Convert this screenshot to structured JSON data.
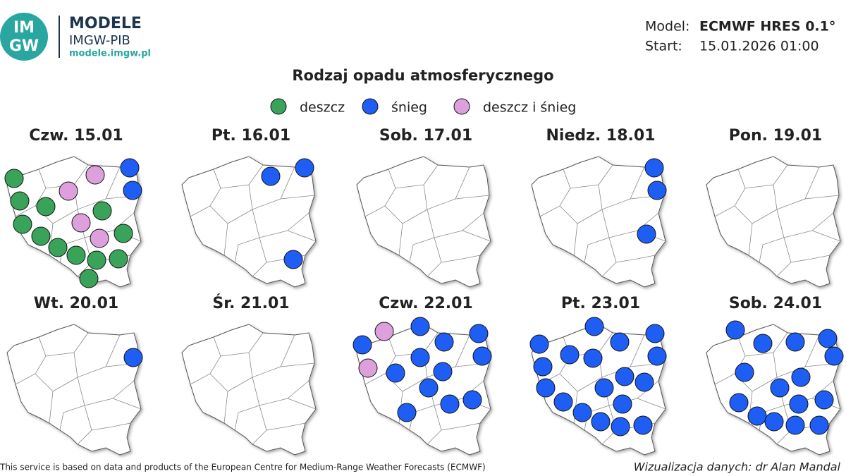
{
  "header": {
    "logo": [
      "IM",
      "GW"
    ],
    "brand": "MODELE",
    "org": "IMGW-PIB",
    "url": "modele.imgw.pl"
  },
  "model": {
    "label": "Model:",
    "value": "ECMWF HRES 0.1°"
  },
  "start": {
    "label": "Start:",
    "value": "15.01.2026 01:00"
  },
  "title": "Rodzaj opadu atmosferycznego",
  "legend": [
    {
      "label": "deszcz",
      "color": "#3aa35a"
    },
    {
      "label": "śnieg",
      "color": "#1f5ef5"
    },
    {
      "label": "deszcz i śnieg",
      "color": "#dda0dd"
    }
  ],
  "panels": [
    {
      "day": "Czw. 15.01"
    },
    {
      "day": "Pt. 16.01"
    },
    {
      "day": "Sob. 17.01"
    },
    {
      "day": "Niedz. 18.01"
    },
    {
      "day": "Pon. 19.01"
    },
    {
      "day": "Wt. 20.01"
    },
    {
      "day": "Śr. 21.01"
    },
    {
      "day": "Czw. 22.01"
    },
    {
      "day": "Pt. 23.01"
    },
    {
      "day": "Sob. 24.01"
    }
  ],
  "footer": {
    "credit": "This service is based on data and products of the European Centre for Medium-Range Weather Forecasts (ECMWF)",
    "author": "Wizualizacja danych: dr Alan Mandal"
  }
}
